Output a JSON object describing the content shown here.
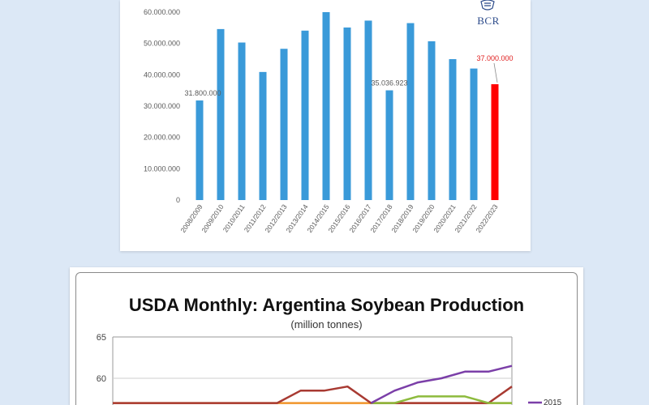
{
  "chart_data": [
    {
      "type": "bar",
      "categories": [
        "2008/2009",
        "2009/2010",
        "2010/2011",
        "2011/2012",
        "2012/2013",
        "2013/2014",
        "2014/2015",
        "2015/2016",
        "2016/2017",
        "2017/2018",
        "2018/2019",
        "2019/2020",
        "2020/2021",
        "2021/2022",
        "2022/2023"
      ],
      "values": [
        31800000,
        54600000,
        50300000,
        40900000,
        48300000,
        54100000,
        60000000,
        55100000,
        57300000,
        35036923,
        56500000,
        50700000,
        45000000,
        42000000,
        37000000
      ],
      "data_labels": [
        {
          "category": "2008/2009",
          "text": "31.800.000"
        },
        {
          "category": "2017/2018",
          "text": "35.036.923"
        },
        {
          "category": "2022/2023",
          "text": "37.000.000"
        }
      ],
      "y_ticks": [
        "0",
        "10.000.000",
        "20.000.000",
        "30.000.000",
        "40.000.000",
        "50.000.000",
        "60.000.000"
      ],
      "ylim": [
        0,
        60000000
      ],
      "colors": {
        "bar": "#3a9ad9",
        "highlight": "#ff0000",
        "highlight_label": "#e02020",
        "axis_text": "#595959"
      },
      "highlight_category": "2022/2023",
      "logo_text": "BCR"
    },
    {
      "type": "line",
      "title": "USDA Monthly: Argentina Soybean Production",
      "subtitle": "(million tonnes)",
      "y_ticks": [
        "65",
        "60"
      ],
      "ylim_visible": [
        55,
        65
      ],
      "series": [
        {
          "name": "",
          "color": "#f0952a",
          "values": [
            57.0,
            57.0,
            57.0,
            57.0,
            57.0,
            57.0,
            57.0,
            57.0,
            57.0,
            57.0,
            57.0,
            57.0,
            57.0,
            57.0,
            57.0,
            57.0,
            57.0,
            57.0
          ]
        },
        {
          "name": "",
          "color": "#a83a32",
          "values": [
            57.0,
            57.0,
            57.0,
            57.0,
            57.0,
            57.0,
            57.0,
            57.0,
            58.5,
            58.5,
            59.0,
            57.0,
            57.0,
            57.0,
            57.0,
            57.0,
            57.0,
            59.0
          ]
        },
        {
          "name": "",
          "color": "#8dbb3d",
          "values": [
            null,
            null,
            null,
            null,
            null,
            null,
            null,
            null,
            null,
            null,
            null,
            57.0,
            57.0,
            57.8,
            57.8,
            57.8,
            57.0,
            57.0
          ]
        },
        {
          "name": "2015",
          "color": "#7b3fa8",
          "values": [
            null,
            null,
            null,
            null,
            null,
            null,
            null,
            null,
            null,
            null,
            null,
            57.0,
            58.5,
            59.5,
            60.0,
            60.8,
            60.8,
            61.5
          ]
        }
      ],
      "legend": [
        "2015"
      ],
      "colors": {
        "grid": "#cfcfcf",
        "axis_text": "#444444"
      }
    }
  ]
}
